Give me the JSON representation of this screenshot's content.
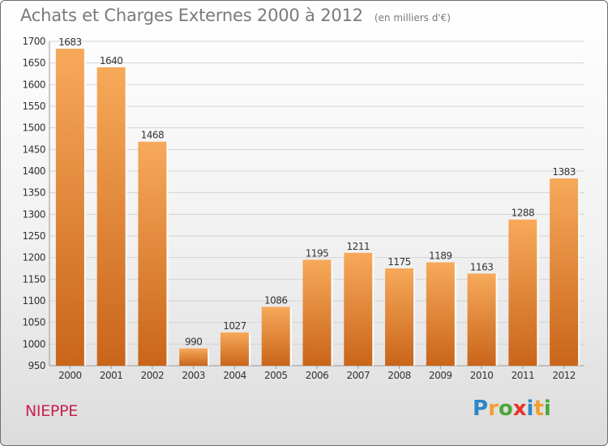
{
  "title": "Achats et Charges Externes 2000 à 2012",
  "unit_note": "(en milliers d'€)",
  "city": "NIEPPE",
  "logo": {
    "text": "Proxiti",
    "letters": [
      {
        "ch": "P",
        "color": "#2e86c8"
      },
      {
        "ch": "r",
        "color": "#f0a030"
      },
      {
        "ch": "o",
        "color": "#4aa83a"
      },
      {
        "ch": "x",
        "color": "#e8342a"
      },
      {
        "ch": "i",
        "color": "#2e86c8"
      },
      {
        "ch": "t",
        "color": "#f0a030"
      },
      {
        "ch": "i",
        "color": "#4aa83a"
      }
    ]
  },
  "colors": {
    "bar_top": "#f7a95a",
    "bar_bottom": "#c9651a",
    "grid": "#d4d4d4",
    "title": "#7a7a7a",
    "city": "#c8204f"
  },
  "chart_data": {
    "type": "bar",
    "title": "Achats et Charges Externes 2000 à 2012",
    "subtitle": "(en milliers d'€)",
    "xlabel": "",
    "ylabel": "",
    "categories": [
      "2000",
      "2001",
      "2002",
      "2003",
      "2004",
      "2005",
      "2006",
      "2007",
      "2008",
      "2009",
      "2010",
      "2011",
      "2012"
    ],
    "values": [
      1683,
      1640,
      1468,
      990,
      1027,
      1086,
      1195,
      1211,
      1175,
      1189,
      1163,
      1288,
      1383
    ],
    "ylim": [
      950,
      1700
    ],
    "yticks": [
      950,
      1000,
      1050,
      1100,
      1150,
      1200,
      1250,
      1300,
      1350,
      1400,
      1450,
      1500,
      1550,
      1600,
      1650,
      1700
    ],
    "grid": true,
    "legend": "none"
  }
}
